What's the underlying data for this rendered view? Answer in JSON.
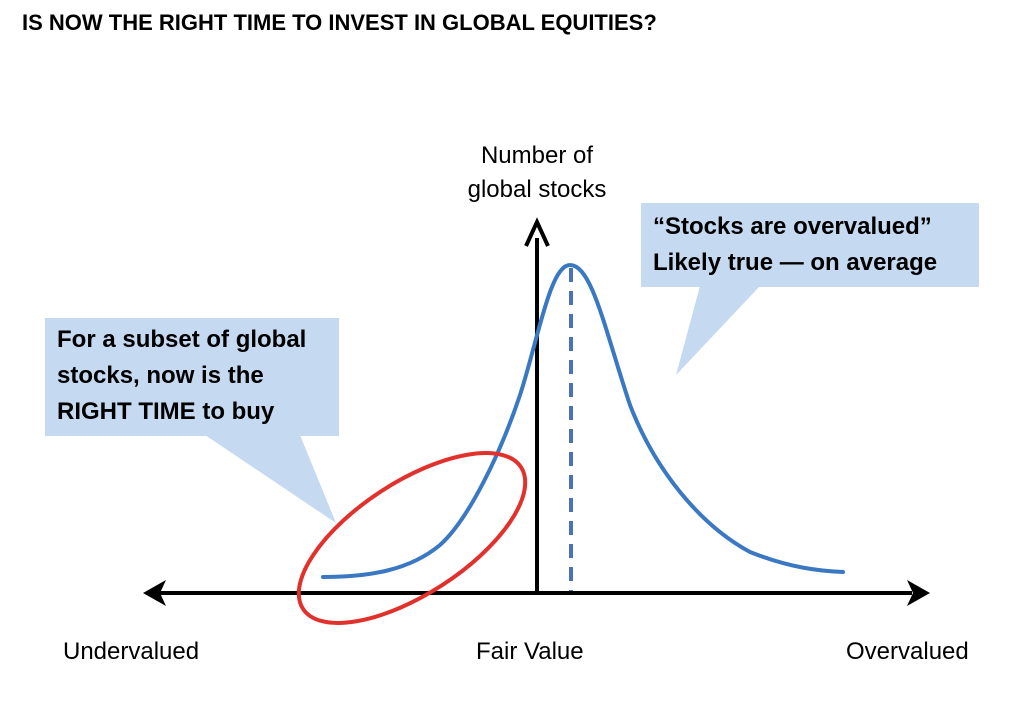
{
  "title": "IS NOW THE RIGHT TIME TO INVEST IN GLOBAL EQUITIES?",
  "y_axis_label": [
    "Number of",
    "global stocks"
  ],
  "x_axis_labels": {
    "left": "Undervalued",
    "center": "Fair Value",
    "right": "Overvalued"
  },
  "callouts": {
    "overvalued": {
      "lines": [
        "“Stocks are overvalued”",
        "Likely true — on average"
      ]
    },
    "subset": {
      "lines": [
        "For a subset of global",
        "stocks, now is the",
        "RIGHT TIME to buy"
      ]
    }
  },
  "colors": {
    "curve": "#3a78c2",
    "ellipse": "#e0312c",
    "callout_fill": "#c5d9f1",
    "axis": "#000000",
    "mean_line": "#4a72b8"
  }
}
